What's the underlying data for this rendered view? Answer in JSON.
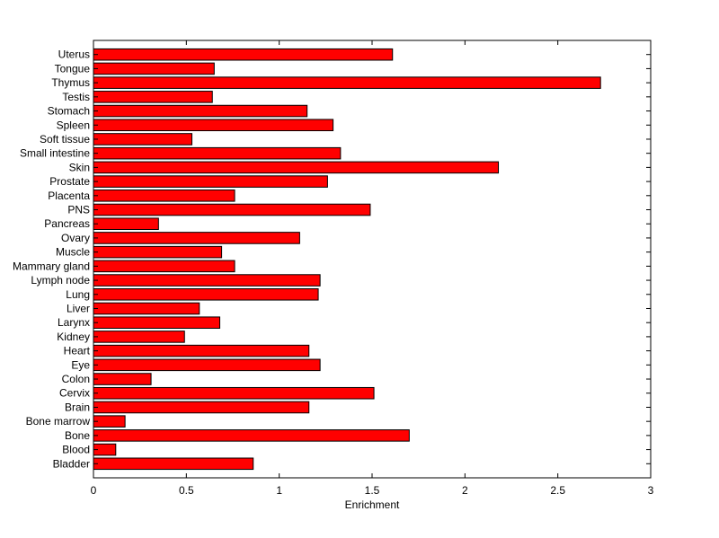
{
  "chart_data": {
    "type": "bar",
    "orientation": "horizontal",
    "categories": [
      "Bladder",
      "Blood",
      "Bone",
      "Bone marrow",
      "Brain",
      "Cervix",
      "Colon",
      "Eye",
      "Heart",
      "Kidney",
      "Larynx",
      "Liver",
      "Lung",
      "Lymph node",
      "Mammary gland",
      "Muscle",
      "Ovary",
      "Pancreas",
      "PNS",
      "Placenta",
      "Prostate",
      "Skin",
      "Small intestine",
      "Soft tissue",
      "Spleen",
      "Stomach",
      "Testis",
      "Thymus",
      "Tongue",
      "Uterus"
    ],
    "values": [
      0.86,
      0.12,
      1.7,
      0.17,
      1.16,
      1.51,
      0.31,
      1.22,
      1.16,
      0.49,
      0.68,
      0.57,
      1.21,
      1.22,
      0.76,
      0.69,
      1.11,
      0.35,
      1.49,
      0.76,
      1.26,
      2.18,
      1.33,
      0.53,
      1.29,
      1.15,
      0.64,
      2.73,
      0.65,
      1.61
    ],
    "xlabel": "Enrichment",
    "ylabel": "",
    "title": "",
    "xlim": [
      0,
      3
    ],
    "xticks": [
      "0",
      "0.5",
      "1",
      "1.5",
      "2",
      "2.5",
      "3"
    ],
    "grid": false,
    "bar_color": "#ff0000"
  }
}
